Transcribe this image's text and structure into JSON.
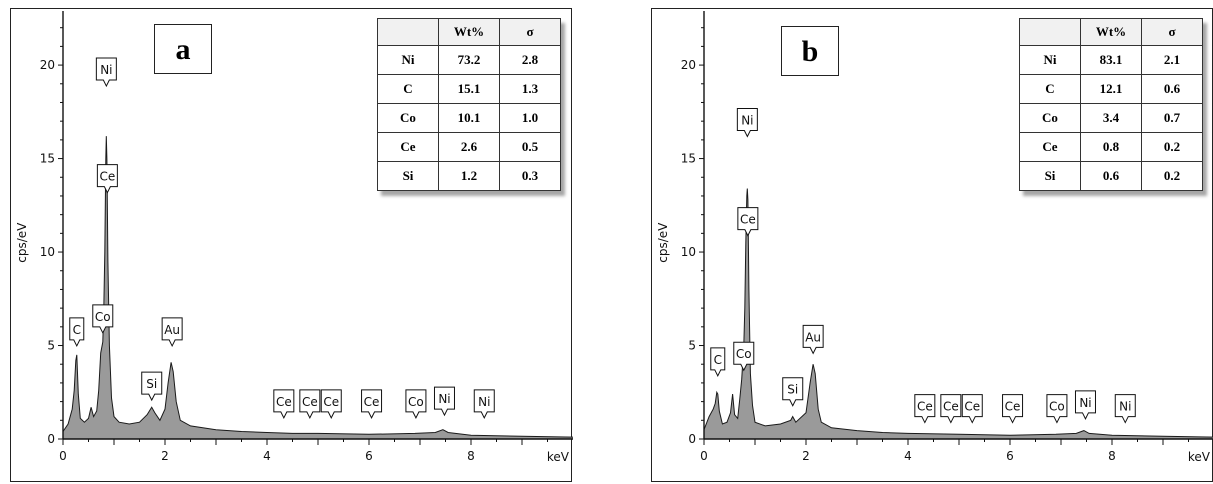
{
  "chart_data": [
    {
      "panel": "a",
      "type": "area",
      "xlabel": "keV",
      "ylabel": "cps/eV",
      "xlim": [
        0,
        10
      ],
      "ylim": [
        0,
        23
      ],
      "x_ticks": [
        "0",
        "2",
        "4",
        "6",
        "8"
      ],
      "y_ticks": [
        "0",
        "5",
        "10",
        "15",
        "20"
      ],
      "spectrum": [
        [
          0.0,
          0.4
        ],
        [
          0.1,
          0.8
        ],
        [
          0.18,
          1.6
        ],
        [
          0.22,
          2.6
        ],
        [
          0.25,
          4.2
        ],
        [
          0.27,
          4.5
        ],
        [
          0.3,
          2.4
        ],
        [
          0.34,
          1.1
        ],
        [
          0.42,
          0.9
        ],
        [
          0.5,
          1.1
        ],
        [
          0.55,
          1.7
        ],
        [
          0.6,
          1.2
        ],
        [
          0.66,
          1.5
        ],
        [
          0.7,
          2.6
        ],
        [
          0.74,
          4.6
        ],
        [
          0.78,
          5.2
        ],
        [
          0.8,
          7.0
        ],
        [
          0.82,
          10.0
        ],
        [
          0.84,
          15.0
        ],
        [
          0.85,
          16.2
        ],
        [
          0.86,
          15.0
        ],
        [
          0.88,
          9.5
        ],
        [
          0.91,
          5.0
        ],
        [
          0.95,
          2.2
        ],
        [
          1.0,
          1.2
        ],
        [
          1.1,
          0.9
        ],
        [
          1.3,
          0.8
        ],
        [
          1.5,
          0.9
        ],
        [
          1.65,
          1.3
        ],
        [
          1.74,
          1.7
        ],
        [
          1.8,
          1.4
        ],
        [
          1.9,
          1.0
        ],
        [
          2.0,
          1.6
        ],
        [
          2.06,
          3.0
        ],
        [
          2.12,
          4.1
        ],
        [
          2.16,
          3.6
        ],
        [
          2.22,
          2.0
        ],
        [
          2.3,
          1.0
        ],
        [
          2.5,
          0.7
        ],
        [
          3.0,
          0.5
        ],
        [
          3.5,
          0.4
        ],
        [
          4.0,
          0.35
        ],
        [
          4.5,
          0.3
        ],
        [
          5.0,
          0.3
        ],
        [
          6.0,
          0.25
        ],
        [
          6.9,
          0.3
        ],
        [
          7.3,
          0.35
        ],
        [
          7.45,
          0.5
        ],
        [
          7.55,
          0.35
        ],
        [
          8.0,
          0.2
        ],
        [
          9.0,
          0.15
        ],
        [
          10.0,
          0.1
        ]
      ],
      "peak_labels": [
        {
          "text": "Ni",
          "x": 0.85,
          "y": 19.2
        },
        {
          "text": "Ce",
          "x": 0.87,
          "y": 13.5
        },
        {
          "text": "C",
          "x": 0.27,
          "y": 5.3
        },
        {
          "text": "Co",
          "x": 0.78,
          "y": 6.0
        },
        {
          "text": "Au",
          "x": 2.14,
          "y": 5.3
        },
        {
          "text": "Si",
          "x": 1.74,
          "y": 2.4
        },
        {
          "text": "Ce",
          "x": 4.33,
          "y": 1.45
        },
        {
          "text": "Ce",
          "x": 4.84,
          "y": 1.45
        },
        {
          "text": "Ce",
          "x": 5.26,
          "y": 1.45
        },
        {
          "text": "Ce",
          "x": 6.05,
          "y": 1.45
        },
        {
          "text": "Co",
          "x": 6.92,
          "y": 1.45
        },
        {
          "text": "Ni",
          "x": 7.48,
          "y": 1.6
        },
        {
          "text": "Ni",
          "x": 8.26,
          "y": 1.45
        }
      ],
      "table": {
        "headers": [
          "",
          "Wt%",
          "σ"
        ],
        "rows": [
          [
            "Ni",
            "73.2",
            "2.8"
          ],
          [
            "C",
            "15.1",
            "1.3"
          ],
          [
            "Co",
            "10.1",
            "1.0"
          ],
          [
            "Ce",
            "2.6",
            "0.5"
          ],
          [
            "Si",
            "1.2",
            "0.3"
          ]
        ]
      }
    },
    {
      "panel": "b",
      "type": "area",
      "xlabel": "keV",
      "ylabel": "cps/eV",
      "xlim": [
        0,
        10
      ],
      "ylim": [
        0,
        23
      ],
      "x_ticks": [
        "0",
        "2",
        "4",
        "6",
        "8"
      ],
      "y_ticks": [
        "0",
        "5",
        "10",
        "15",
        "20"
      ],
      "spectrum": [
        [
          0.0,
          0.5
        ],
        [
          0.1,
          1.2
        ],
        [
          0.18,
          1.6
        ],
        [
          0.22,
          1.9
        ],
        [
          0.25,
          2.5
        ],
        [
          0.27,
          2.4
        ],
        [
          0.3,
          1.5
        ],
        [
          0.36,
          0.8
        ],
        [
          0.45,
          0.9
        ],
        [
          0.52,
          1.4
        ],
        [
          0.56,
          2.4
        ],
        [
          0.6,
          1.3
        ],
        [
          0.66,
          1.1
        ],
        [
          0.7,
          2.1
        ],
        [
          0.74,
          3.2
        ],
        [
          0.78,
          5.0
        ],
        [
          0.8,
          7.0
        ],
        [
          0.82,
          10.5
        ],
        [
          0.84,
          13.0
        ],
        [
          0.85,
          13.4
        ],
        [
          0.86,
          12.8
        ],
        [
          0.88,
          8.0
        ],
        [
          0.91,
          3.5
        ],
        [
          0.95,
          1.8
        ],
        [
          1.0,
          0.9
        ],
        [
          1.2,
          0.7
        ],
        [
          1.5,
          0.8
        ],
        [
          1.7,
          1.0
        ],
        [
          1.74,
          1.2
        ],
        [
          1.8,
          0.9
        ],
        [
          2.0,
          1.4
        ],
        [
          2.08,
          3.0
        ],
        [
          2.14,
          4.0
        ],
        [
          2.18,
          3.5
        ],
        [
          2.24,
          1.6
        ],
        [
          2.3,
          0.9
        ],
        [
          2.5,
          0.6
        ],
        [
          3.0,
          0.45
        ],
        [
          3.5,
          0.35
        ],
        [
          4.0,
          0.3
        ],
        [
          5.0,
          0.25
        ],
        [
          6.0,
          0.2
        ],
        [
          6.9,
          0.25
        ],
        [
          7.3,
          0.3
        ],
        [
          7.45,
          0.45
        ],
        [
          7.55,
          0.3
        ],
        [
          8.0,
          0.2
        ],
        [
          9.0,
          0.15
        ],
        [
          10.0,
          0.1
        ]
      ],
      "peak_labels": [
        {
          "text": "Ni",
          "x": 0.85,
          "y": 16.5
        },
        {
          "text": "Ce",
          "x": 0.86,
          "y": 11.2
        },
        {
          "text": "C",
          "x": 0.27,
          "y": 3.7
        },
        {
          "text": "Co",
          "x": 0.78,
          "y": 4.0
        },
        {
          "text": "Au",
          "x": 2.14,
          "y": 4.9
        },
        {
          "text": "Si",
          "x": 1.74,
          "y": 2.1
        },
        {
          "text": "Ce",
          "x": 4.33,
          "y": 1.2
        },
        {
          "text": "Ce",
          "x": 4.84,
          "y": 1.2
        },
        {
          "text": "Ce",
          "x": 5.26,
          "y": 1.2
        },
        {
          "text": "Ce",
          "x": 6.05,
          "y": 1.2
        },
        {
          "text": "Co",
          "x": 6.92,
          "y": 1.2
        },
        {
          "text": "Ni",
          "x": 7.48,
          "y": 1.4
        },
        {
          "text": "Ni",
          "x": 8.26,
          "y": 1.2
        }
      ],
      "table": {
        "headers": [
          "",
          "Wt%",
          "σ"
        ],
        "rows": [
          [
            "Ni",
            "83.1",
            "2.1"
          ],
          [
            "C",
            "12.1",
            "0.6"
          ],
          [
            "Co",
            "3.4",
            "0.7"
          ],
          [
            "Ce",
            "0.8",
            "0.2"
          ],
          [
            "Si",
            "0.6",
            "0.2"
          ]
        ]
      }
    }
  ],
  "colors": {
    "fill": "#9a9a9a",
    "line": "#1a1a1a",
    "axis": "#111111"
  }
}
